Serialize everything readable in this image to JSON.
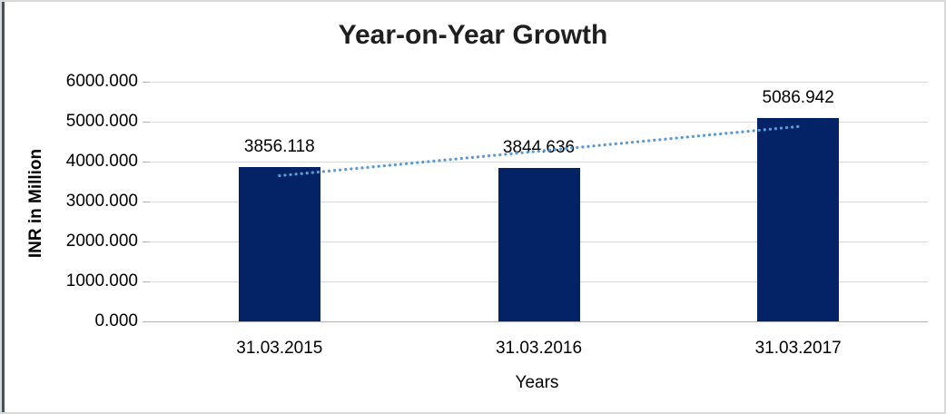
{
  "chart_data": {
    "type": "bar",
    "title": "Year-on-Year Growth",
    "xlabel": "Years",
    "ylabel": "INR in Million",
    "categories": [
      "31.03.2015",
      "31.03.2016",
      "31.03.2017"
    ],
    "values": [
      3856.118,
      3844.636,
      5086.942
    ],
    "value_labels": [
      "3856.118",
      "3844.636",
      "5086.942"
    ],
    "y_ticks": [
      "6000.000",
      "5000.000",
      "4000.000",
      "3000.000",
      "2000.000",
      "1000.000",
      "0.000"
    ],
    "ylim": [
      0,
      6000
    ],
    "grid": true,
    "legend": false,
    "trendline": {
      "type": "linear",
      "style": "dotted"
    },
    "colors": {
      "bar": "#032366",
      "trendline": "#5b9bd5",
      "gridline": "#d9d9d9",
      "axis_line": "#b3b3b3",
      "text": "#000000",
      "title_text": "#1f1f1f",
      "frame_border": "#d9d9d9",
      "frame_left_accent": "#49505c",
      "background": "#ffffff"
    }
  }
}
